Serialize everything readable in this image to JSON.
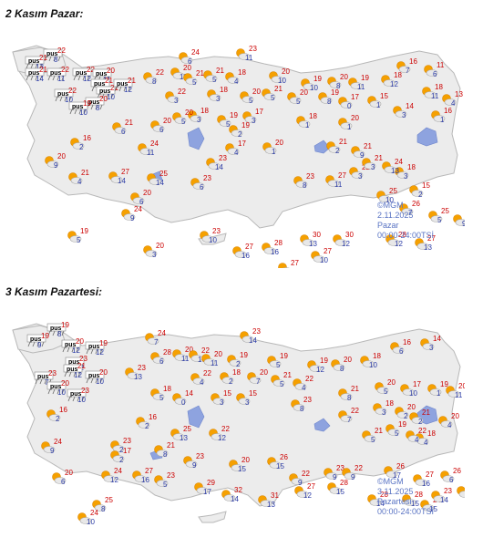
{
  "maps": [
    {
      "title": "2 Kasım Pazar:",
      "credit": "©MGM",
      "date": "2.11.2025",
      "day": "Pazar",
      "hours": "00:00-24:00TSİ",
      "stations": [
        {
          "icon": "rain-icon",
          "max": "22",
          "min": "8"
        },
        {
          "icon": "rain-icon",
          "max": "21",
          "min": "13"
        },
        {
          "icon": "rain-icon",
          "max": "21",
          "min": "14"
        },
        {
          "icon": "rain-icon",
          "max": "22",
          "min": "11"
        },
        {
          "icon": "rain-icon",
          "max": "22",
          "min": "12"
        },
        {
          "icon": "rain-icon",
          "max": "20",
          "min": "11"
        },
        {
          "icon": "rain-icon",
          "max": "21",
          "min": "11"
        },
        {
          "icon": "rain-icon",
          "max": "21",
          "min": "10"
        },
        {
          "icon": "rain-icon",
          "max": "21",
          "min": "12"
        },
        {
          "icon": "rain-icon",
          "max": "22",
          "min": "10"
        },
        {
          "icon": "rain-icon",
          "max": "20",
          "min": "8"
        },
        {
          "icon": "rain-icon",
          "max": "19",
          "min": "10"
        },
        {
          "icon": "partly-cloudy-icon",
          "max": "24",
          "min": "6"
        },
        {
          "icon": "partly-cloudy-icon",
          "max": "23",
          "min": "11"
        },
        {
          "icon": "partly-cloudy-icon",
          "max": "20",
          "min": "11"
        },
        {
          "icon": "partly-cloudy-icon",
          "max": "22",
          "min": "8"
        },
        {
          "icon": "partly-cloudy-icon",
          "max": "21",
          "min": "5"
        },
        {
          "icon": "partly-cloudy-icon",
          "max": "21",
          "min": "5"
        },
        {
          "icon": "partly-cloudy-icon",
          "max": "18",
          "min": "4"
        },
        {
          "icon": "partly-cloudy-icon",
          "max": "20",
          "min": "10"
        },
        {
          "icon": "partly-cloudy-icon",
          "max": "19",
          "min": "10"
        },
        {
          "icon": "partly-cloudy-icon",
          "max": "20",
          "min": "8"
        },
        {
          "icon": "partly-cloudy-icon",
          "max": "16",
          "min": "7"
        },
        {
          "icon": "partly-cloudy-icon",
          "max": "11",
          "min": "6"
        },
        {
          "icon": "partly-cloudy-icon",
          "max": "22",
          "min": "3"
        },
        {
          "icon": "partly-cloudy-icon",
          "max": "18",
          "min": "3"
        },
        {
          "icon": "partly-cloudy-icon",
          "max": "20",
          "min": "5"
        },
        {
          "icon": "partly-cloudy-icon",
          "max": "21",
          "min": "5"
        },
        {
          "icon": "partly-cloudy-icon",
          "max": "20",
          "min": "5"
        },
        {
          "icon": "partly-cloudy-icon",
          "max": "19",
          "min": "8"
        },
        {
          "icon": "partly-cloudy-icon",
          "max": "19",
          "min": "11"
        },
        {
          "icon": "partly-cloudy-icon",
          "max": "18",
          "min": "12"
        },
        {
          "icon": "partly-cloudy-icon",
          "max": "18",
          "min": "11"
        },
        {
          "icon": "partly-cloudy-icon",
          "max": "13",
          "min": "4"
        },
        {
          "icon": "partly-cloudy-icon",
          "max": "18",
          "min": "3"
        },
        {
          "icon": "partly-cloudy-icon",
          "max": "20",
          "min": "5"
        },
        {
          "icon": "partly-cloudy-icon",
          "max": "19",
          "min": "5"
        },
        {
          "icon": "partly-cloudy-icon",
          "max": "17",
          "min": "3"
        },
        {
          "icon": "partly-cloudy-icon",
          "max": "18",
          "min": "1"
        },
        {
          "icon": "partly-cloudy-icon",
          "max": "17",
          "min": "0"
        },
        {
          "icon": "partly-cloudy-icon",
          "max": "15",
          "min": "1"
        },
        {
          "icon": "partly-cloudy-icon",
          "max": "14",
          "min": "3"
        },
        {
          "icon": "partly-cloudy-icon",
          "max": "16",
          "min": "1"
        },
        {
          "icon": "partly-cloudy-icon",
          "max": "21",
          "min": "6"
        },
        {
          "icon": "partly-cloudy-icon",
          "max": "20",
          "min": "6"
        },
        {
          "icon": "partly-cloudy-icon",
          "max": "20",
          "min": "1"
        },
        {
          "icon": "partly-cloudy-icon",
          "max": "19",
          "min": "2"
        },
        {
          "icon": "partly-cloudy-icon",
          "max": "17",
          "min": "4"
        },
        {
          "icon": "partly-cloudy-icon",
          "max": "20",
          "min": "1"
        },
        {
          "icon": "partly-cloudy-icon",
          "max": "21",
          "min": "2"
        },
        {
          "icon": "partly-cloudy-icon",
          "max": "21",
          "min": "9"
        },
        {
          "icon": "partly-cloudy-icon",
          "max": "22",
          "min": "3"
        },
        {
          "icon": "partly-cloudy-icon",
          "max": "21",
          "min": "3"
        },
        {
          "icon": "partly-cloudy-icon",
          "max": "18",
          "min": "3"
        },
        {
          "icon": "partly-cloudy-icon",
          "max": "15",
          "min": "2"
        },
        {
          "icon": "partly-cloudy-icon",
          "max": "16",
          "min": "2"
        },
        {
          "icon": "partly-cloudy-icon",
          "max": "24",
          "min": "11"
        },
        {
          "icon": "partly-cloudy-icon",
          "max": "20",
          "min": "9"
        },
        {
          "icon": "partly-cloudy-icon",
          "max": "23",
          "min": "14"
        },
        {
          "icon": "partly-cloudy-icon",
          "max": "21",
          "min": "4"
        },
        {
          "icon": "partly-cloudy-icon",
          "max": "27",
          "min": "14"
        },
        {
          "icon": "partly-cloudy-icon",
          "max": "25",
          "min": "14"
        },
        {
          "icon": "partly-cloudy-icon",
          "max": "23",
          "min": "6"
        },
        {
          "icon": "partly-cloudy-icon",
          "max": "20",
          "min": "6"
        },
        {
          "icon": "partly-cloudy-icon",
          "max": "23",
          "min": "8"
        },
        {
          "icon": "partly-cloudy-icon",
          "max": "27",
          "min": "11"
        },
        {
          "icon": "partly-cloudy-icon",
          "max": "25",
          "min": "10"
        },
        {
          "icon": "partly-cloudy-icon",
          "max": "26",
          "min": "7"
        },
        {
          "icon": "partly-cloudy-icon",
          "max": "25",
          "min": "5"
        },
        {
          "icon": "partly-cloudy-icon",
          "max": "23",
          "min": "9"
        },
        {
          "icon": "partly-cloudy-icon",
          "max": "19",
          "min": "5"
        },
        {
          "icon": "partly-cloudy-icon",
          "max": "24",
          "min": "9"
        },
        {
          "icon": "partly-cloudy-icon",
          "max": "23",
          "min": "10"
        },
        {
          "icon": "partly-cloudy-icon",
          "max": "20",
          "min": "3"
        },
        {
          "icon": "partly-cloudy-icon",
          "max": "27",
          "min": "16"
        },
        {
          "icon": "partly-cloudy-icon",
          "max": "28",
          "min": "16"
        },
        {
          "icon": "partly-cloudy-icon",
          "max": "30",
          "min": "13"
        },
        {
          "icon": "partly-cloudy-icon",
          "max": "30",
          "min": "12"
        },
        {
          "icon": "partly-cloudy-icon",
          "max": "27",
          "min": "10"
        },
        {
          "icon": "partly-cloudy-icon",
          "max": "27",
          "min": "14"
        },
        {
          "icon": "partly-cloudy-icon",
          "max": "28",
          "min": "12"
        },
        {
          "icon": "partly-cloudy-icon",
          "max": "27",
          "min": "13"
        },
        {
          "icon": "partly-cloudy-icon",
          "max": "24",
          "min": "13"
        },
        {
          "icon": "partly-cloudy-icon",
          "max": "22",
          "min": "13"
        },
        {
          "icon": "partly-cloudy-icon",
          "max": "25",
          "min": "5"
        }
      ]
    },
    {
      "title": "3 Kasım Pazartesi:",
      "credit": "©MGM",
      "date": "3.11.2025",
      "day": "Pazartesi",
      "hours": "00:00-24:00TSİ",
      "stations": [
        {
          "icon": "rain-icon",
          "max": "19",
          "min": "8"
        },
        {
          "icon": "rain-icon",
          "max": "19",
          "min": "9"
        },
        {
          "icon": "rain-icon",
          "max": "20",
          "min": "12"
        },
        {
          "icon": "rain-icon",
          "max": "19",
          "min": "12"
        },
        {
          "icon": "rain-icon",
          "max": "23",
          "min": "12"
        },
        {
          "icon": "rain-icon",
          "max": "21",
          "min": "12"
        },
        {
          "icon": "rain-icon",
          "max": "23",
          "min": "7"
        },
        {
          "icon": "rain-icon",
          "max": "20",
          "min": "10"
        },
        {
          "icon": "rain-icon",
          "max": "20",
          "min": "10"
        },
        {
          "icon": "rain-icon",
          "max": "23",
          "min": "10"
        },
        {
          "icon": "partly-cloudy-icon",
          "max": "24",
          "min": "7"
        },
        {
          "icon": "partly-cloudy-icon",
          "max": "23",
          "min": "14"
        },
        {
          "icon": "partly-cloudy-icon",
          "max": "20",
          "min": "11"
        },
        {
          "icon": "partly-cloudy-icon",
          "max": "22",
          "min": "10"
        },
        {
          "icon": "partly-cloudy-icon",
          "max": "28",
          "min": "6"
        },
        {
          "icon": "partly-cloudy-icon",
          "max": "20",
          "min": "11"
        },
        {
          "icon": "partly-cloudy-icon",
          "max": "19",
          "min": "2"
        },
        {
          "icon": "partly-cloudy-icon",
          "max": "19",
          "min": "5"
        },
        {
          "icon": "partly-cloudy-icon",
          "max": "19",
          "min": "12"
        },
        {
          "icon": "partly-cloudy-icon",
          "max": "20",
          "min": "8"
        },
        {
          "icon": "partly-cloudy-icon",
          "max": "18",
          "min": "10"
        },
        {
          "icon": "partly-cloudy-icon",
          "max": "16",
          "min": "6"
        },
        {
          "icon": "partly-cloudy-icon",
          "max": "14",
          "min": "3"
        },
        {
          "icon": "partly-cloudy-icon",
          "max": "23",
          "min": "13"
        },
        {
          "icon": "partly-cloudy-icon",
          "max": "22",
          "min": "4"
        },
        {
          "icon": "partly-cloudy-icon",
          "max": "18",
          "min": "2"
        },
        {
          "icon": "partly-cloudy-icon",
          "max": "20",
          "min": "7"
        },
        {
          "icon": "partly-cloudy-icon",
          "max": "21",
          "min": "5"
        },
        {
          "icon": "partly-cloudy-icon",
          "max": "22",
          "min": "4"
        },
        {
          "icon": "partly-cloudy-icon",
          "max": "17",
          "min": "10"
        },
        {
          "icon": "partly-cloudy-icon",
          "max": "19",
          "min": "1"
        },
        {
          "icon": "partly-cloudy-icon",
          "max": "20",
          "min": "11"
        },
        {
          "icon": "partly-cloudy-icon",
          "max": "18",
          "min": "5"
        },
        {
          "icon": "partly-cloudy-icon",
          "max": "14",
          "min": "0"
        },
        {
          "icon": "partly-cloudy-icon",
          "max": "15",
          "min": "3"
        },
        {
          "icon": "partly-cloudy-icon",
          "max": "15",
          "min": "3"
        },
        {
          "icon": "partly-cloudy-icon",
          "max": "23",
          "min": "8"
        },
        {
          "icon": "partly-cloudy-icon",
          "max": "21",
          "min": "8"
        },
        {
          "icon": "partly-cloudy-icon",
          "max": "20",
          "min": "5"
        },
        {
          "icon": "partly-cloudy-icon",
          "max": "18",
          "min": "3"
        },
        {
          "icon": "partly-cloudy-icon",
          "max": "20",
          "min": "2"
        },
        {
          "icon": "partly-cloudy-icon",
          "max": "21",
          "min": "2"
        },
        {
          "icon": "partly-cloudy-icon",
          "max": "18",
          "min": "4"
        },
        {
          "icon": "partly-cloudy-icon",
          "max": "16",
          "min": "2"
        },
        {
          "icon": "partly-cloudy-icon",
          "max": "16",
          "min": "2"
        },
        {
          "icon": "partly-cloudy-icon",
          "max": "25",
          "min": "13"
        },
        {
          "icon": "partly-cloudy-icon",
          "max": "22",
          "min": "12"
        },
        {
          "icon": "partly-cloudy-icon",
          "max": "22",
          "min": "7"
        },
        {
          "icon": "partly-cloudy-icon",
          "max": "21",
          "min": "5"
        },
        {
          "icon": "partly-cloudy-icon",
          "max": "19",
          "min": "5"
        },
        {
          "icon": "partly-cloudy-icon",
          "max": "22",
          "min": "4"
        },
        {
          "icon": "partly-cloudy-icon",
          "max": "20",
          "min": "4"
        },
        {
          "icon": "partly-cloudy-icon",
          "max": "23",
          "min": "2"
        },
        {
          "icon": "partly-cloudy-icon",
          "max": "21",
          "min": "8"
        },
        {
          "icon": "partly-cloudy-icon",
          "max": "17",
          "min": "2"
        },
        {
          "icon": "partly-cloudy-icon",
          "max": "23",
          "min": "9"
        },
        {
          "icon": "partly-cloudy-icon",
          "max": "20",
          "min": "15"
        },
        {
          "icon": "partly-cloudy-icon",
          "max": "26",
          "min": "15"
        },
        {
          "icon": "partly-cloudy-icon",
          "max": "23",
          "min": "9"
        },
        {
          "icon": "partly-cloudy-icon",
          "max": "22",
          "min": "9"
        },
        {
          "icon": "partly-cloudy-icon",
          "max": "22",
          "min": "9"
        },
        {
          "icon": "partly-cloudy-icon",
          "max": "26",
          "min": "17"
        },
        {
          "icon": "partly-cloudy-icon",
          "max": "27",
          "min": "16"
        },
        {
          "icon": "partly-cloudy-icon",
          "max": "26",
          "min": "6"
        },
        {
          "icon": "partly-cloudy-icon",
          "max": "26",
          "min": "7"
        },
        {
          "icon": "partly-cloudy-icon",
          "max": "24",
          "min": "9"
        },
        {
          "icon": "partly-cloudy-icon",
          "max": "20",
          "min": "6"
        },
        {
          "icon": "partly-cloudy-icon",
          "max": "24",
          "min": "12"
        },
        {
          "icon": "partly-cloudy-icon",
          "max": "27",
          "min": "16"
        },
        {
          "icon": "partly-cloudy-icon",
          "max": "23",
          "min": "5"
        },
        {
          "icon": "partly-cloudy-icon",
          "max": "29",
          "min": "17"
        },
        {
          "icon": "partly-cloudy-icon",
          "max": "32",
          "min": "14"
        },
        {
          "icon": "partly-cloudy-icon",
          "max": "31",
          "min": "13"
        },
        {
          "icon": "partly-cloudy-icon",
          "max": "27",
          "min": "12"
        },
        {
          "icon": "partly-cloudy-icon",
          "max": "28",
          "min": "15"
        },
        {
          "icon": "partly-cloudy-icon",
          "max": "28",
          "min": "14"
        },
        {
          "icon": "partly-cloudy-icon",
          "max": "28",
          "min": "15"
        },
        {
          "icon": "partly-cloudy-icon",
          "max": "24",
          "min": "15"
        },
        {
          "icon": "partly-cloudy-icon",
          "max": "23",
          "min": "14"
        },
        {
          "icon": "partly-cloudy-icon",
          "max": "25",
          "min": "8"
        },
        {
          "icon": "partly-cloudy-icon",
          "max": "24",
          "min": "10"
        }
      ]
    }
  ],
  "colors": {
    "land": "#ececec",
    "land_border": "#b8b8b8",
    "lake": "#8ea3df",
    "max_temp": "#cc0000",
    "min_temp": "#2a3aa6",
    "sun": "#f5a000",
    "cloud": "#e8e8e8",
    "rain_label": "#000000",
    "caption": "#5a74c4"
  }
}
